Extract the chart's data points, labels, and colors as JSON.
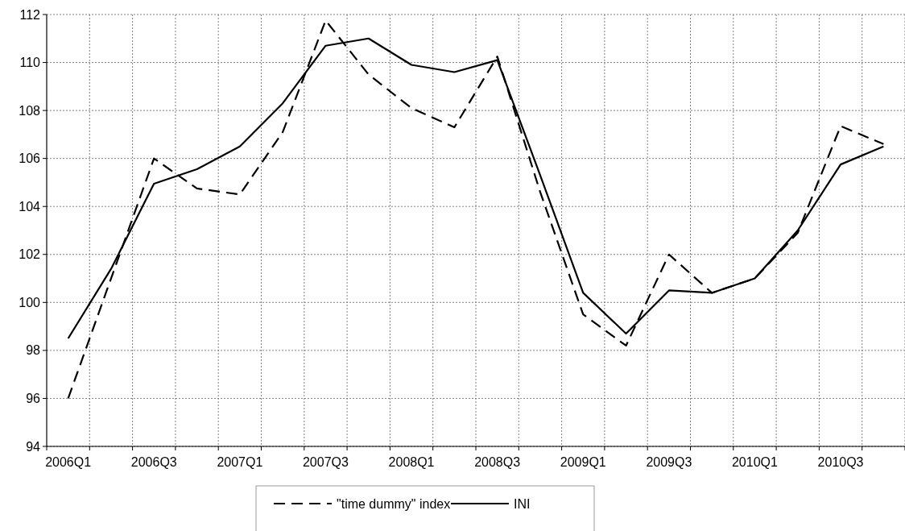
{
  "chart_data": {
    "type": "line",
    "categories": [
      "2006Q1",
      null,
      "2006Q3",
      null,
      "2007Q1",
      null,
      "2007Q3",
      null,
      "2008Q1",
      null,
      "2008Q3",
      null,
      "2009Q1",
      null,
      "2009Q3",
      null,
      "2010Q1",
      null,
      "2010Q3",
      null
    ],
    "series": [
      {
        "name": "\"time dummy\" index",
        "color": "#000000",
        "line_style": "dashed",
        "values": [
          96.0,
          101.0,
          106.0,
          104.75,
          104.5,
          107.1,
          111.75,
          109.5,
          108.1,
          107.3,
          110.25,
          104.6,
          99.5,
          98.2,
          102.0,
          100.4,
          101.0,
          102.9,
          107.35,
          106.6
        ]
      },
      {
        "name": "INI",
        "color": "#000000",
        "line_style": "solid",
        "values": [
          98.5,
          101.4,
          104.95,
          105.55,
          106.5,
          108.3,
          110.7,
          111.0,
          109.9,
          109.6,
          110.1,
          105.3,
          100.4,
          98.7,
          100.5,
          100.4,
          101.0,
          103.0,
          105.75,
          106.5
        ]
      }
    ],
    "ylim": [
      94,
      112
    ],
    "yticks": [
      94,
      96,
      98,
      100,
      102,
      104,
      106,
      108,
      110,
      112
    ],
    "grid": true,
    "legend": "bottom",
    "marker": "none"
  }
}
